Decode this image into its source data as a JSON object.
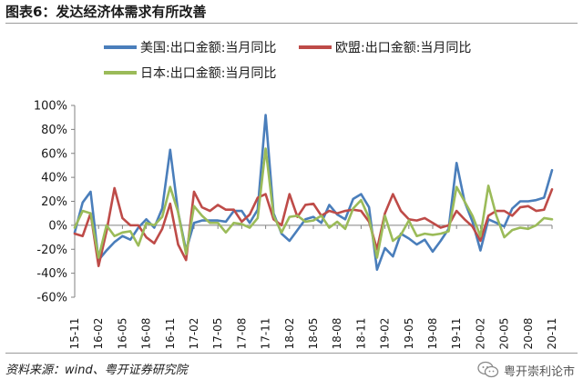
{
  "figure_title": "图表6：发达经济体需求有所改善",
  "source_note": "资料来源：wind、粤开证券研究院",
  "watermark": {
    "text": "粤开崇利论市",
    "icon": "wechat-icon"
  },
  "chart_data": {
    "type": "line",
    "title": "",
    "xlabel": "",
    "ylabel": "",
    "ylim": [
      -0.6,
      1.0
    ],
    "yticks": [
      "100%",
      "80%",
      "60%",
      "40%",
      "20%",
      "0%",
      "-20%",
      "-40%",
      "-60%"
    ],
    "legend_position": "top",
    "x": [
      "15-11",
      "15-12",
      "16-01",
      "16-02",
      "16-03",
      "16-04",
      "16-05",
      "16-06",
      "16-07",
      "16-08",
      "16-09",
      "16-10",
      "16-11",
      "16-12",
      "17-01",
      "17-02",
      "17-03",
      "17-04",
      "17-05",
      "17-06",
      "17-07",
      "17-08",
      "17-09",
      "17-10",
      "17-11",
      "17-12",
      "18-01",
      "18-02",
      "18-03",
      "18-04",
      "18-05",
      "18-06",
      "18-07",
      "18-08",
      "18-09",
      "18-10",
      "18-11",
      "18-12",
      "19-01",
      "19-02",
      "19-03",
      "19-04",
      "19-05",
      "19-06",
      "19-07",
      "19-08",
      "19-09",
      "19-10",
      "19-11",
      "19-12",
      "20-01",
      "20-02",
      "20-03",
      "20-04",
      "20-05",
      "20-06",
      "20-07",
      "20-08",
      "20-09",
      "20-10",
      "20-11"
    ],
    "xtick_labels": [
      "15-11",
      "16-02",
      "16-05",
      "16-08",
      "16-11",
      "17-02",
      "17-05",
      "17-08",
      "17-11",
      "18-02",
      "18-05",
      "18-08",
      "18-11",
      "19-02",
      "19-05",
      "19-08",
      "19-11",
      "20-02",
      "20-05",
      "20-08",
      "20-11"
    ],
    "series": [
      {
        "name": "美国:出口金额:当月同比",
        "color": "#4a7ebb",
        "values": [
          -0.06,
          0.19,
          0.28,
          -0.29,
          -0.21,
          -0.14,
          -0.09,
          -0.12,
          -0.02,
          0.05,
          -0.02,
          0.14,
          0.63,
          0.11,
          -0.21,
          0.02,
          0.04,
          0.04,
          0.04,
          0.03,
          0.12,
          0.12,
          0.02,
          0.13,
          0.92,
          0.1,
          -0.07,
          -0.13,
          -0.04,
          0.05,
          0.07,
          0.02,
          0.17,
          0.09,
          0.05,
          0.22,
          0.26,
          0.15,
          -0.37,
          -0.19,
          -0.26,
          -0.07,
          -0.11,
          -0.16,
          -0.12,
          -0.22,
          -0.13,
          -0.03,
          0.52,
          0.2,
          0.03,
          -0.21,
          0.05,
          0.02,
          -0.01,
          0.14,
          0.2,
          0.2,
          0.21,
          0.23,
          0.46
        ]
      },
      {
        "name": "欧盟:出口金额:当月同比",
        "color": "#be4b48",
        "values": [
          -0.07,
          -0.09,
          0.1,
          -0.34,
          -0.05,
          0.31,
          0.06,
          0.0,
          0.0,
          -0.1,
          -0.15,
          -0.03,
          0.18,
          -0.16,
          -0.29,
          0.28,
          0.15,
          0.12,
          0.17,
          0.13,
          0.13,
          0.03,
          0.09,
          0.23,
          0.26,
          0.05,
          0.0,
          0.26,
          0.07,
          0.17,
          0.18,
          0.08,
          0.12,
          0.1,
          0.12,
          0.13,
          0.12,
          0.03,
          -0.2,
          0.1,
          0.26,
          0.12,
          0.05,
          0.04,
          0.06,
          0.02,
          -0.02,
          0.0,
          0.12,
          0.05,
          -0.01,
          -0.13,
          0.08,
          0.12,
          0.12,
          0.08,
          0.15,
          0.16,
          0.12,
          0.13,
          0.3
        ]
      },
      {
        "name": "日本:出口金额:当月同比",
        "color": "#9bbb59",
        "values": [
          -0.02,
          0.12,
          0.1,
          -0.27,
          0.0,
          -0.09,
          -0.06,
          -0.05,
          -0.17,
          0.02,
          0.0,
          0.07,
          0.32,
          0.11,
          -0.24,
          0.16,
          0.08,
          0.02,
          0.02,
          -0.06,
          0.02,
          0.01,
          -0.02,
          0.06,
          0.64,
          0.08,
          -0.06,
          0.07,
          0.08,
          0.03,
          0.04,
          0.08,
          -0.02,
          0.03,
          -0.03,
          0.14,
          0.21,
          0.06,
          -0.27,
          0.08,
          -0.13,
          -0.08,
          0.04,
          -0.09,
          -0.07,
          -0.08,
          -0.07,
          -0.05,
          0.32,
          0.2,
          0.08,
          -0.09,
          0.33,
          0.08,
          -0.1,
          -0.04,
          -0.02,
          -0.03,
          0.0,
          0.06,
          0.05
        ]
      }
    ]
  }
}
